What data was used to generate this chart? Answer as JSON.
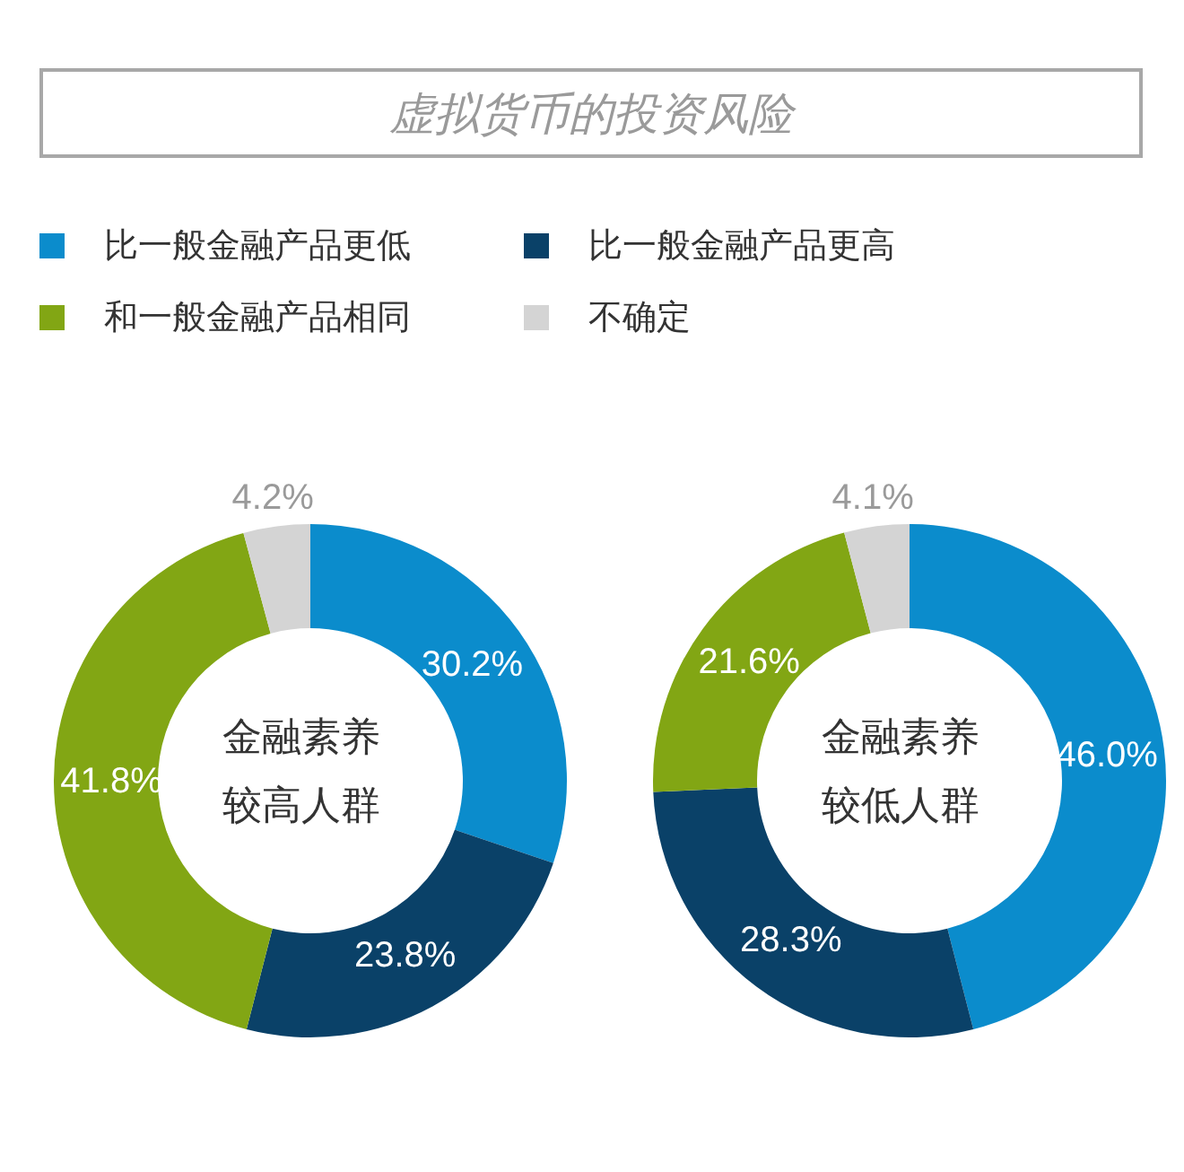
{
  "chart_data": [
    {
      "type": "donut",
      "title": "虚拟货币的投资风险",
      "categories": [
        "比一般金融产品更低",
        "比一般金融产品更高",
        "和一般金融产品相同",
        "不确定"
      ],
      "values": [
        30.2,
        23.8,
        41.8,
        4.2
      ],
      "value_labels": [
        "30.2%",
        "23.8%",
        "41.8%",
        "4.2%"
      ],
      "colors": [
        "#0b8ccc",
        "#0a4168",
        "#82a614",
        "#d4d4d4"
      ],
      "legend": "top",
      "annotations": [
        "金融素养",
        "较高人群"
      ]
    },
    {
      "type": "donut",
      "categories": [
        null,
        null,
        null,
        null
      ],
      "values": [
        46.0,
        28.3,
        21.6,
        4.1
      ],
      "value_labels": [
        "46.0%",
        "28.3%",
        "21.6%",
        "4.1%"
      ],
      "colors": [
        "#0b8ccc",
        "#0a4168",
        "#82a614",
        "#d4d4d4"
      ],
      "annotations": [
        "金融素养",
        "较低人群"
      ]
    }
  ]
}
